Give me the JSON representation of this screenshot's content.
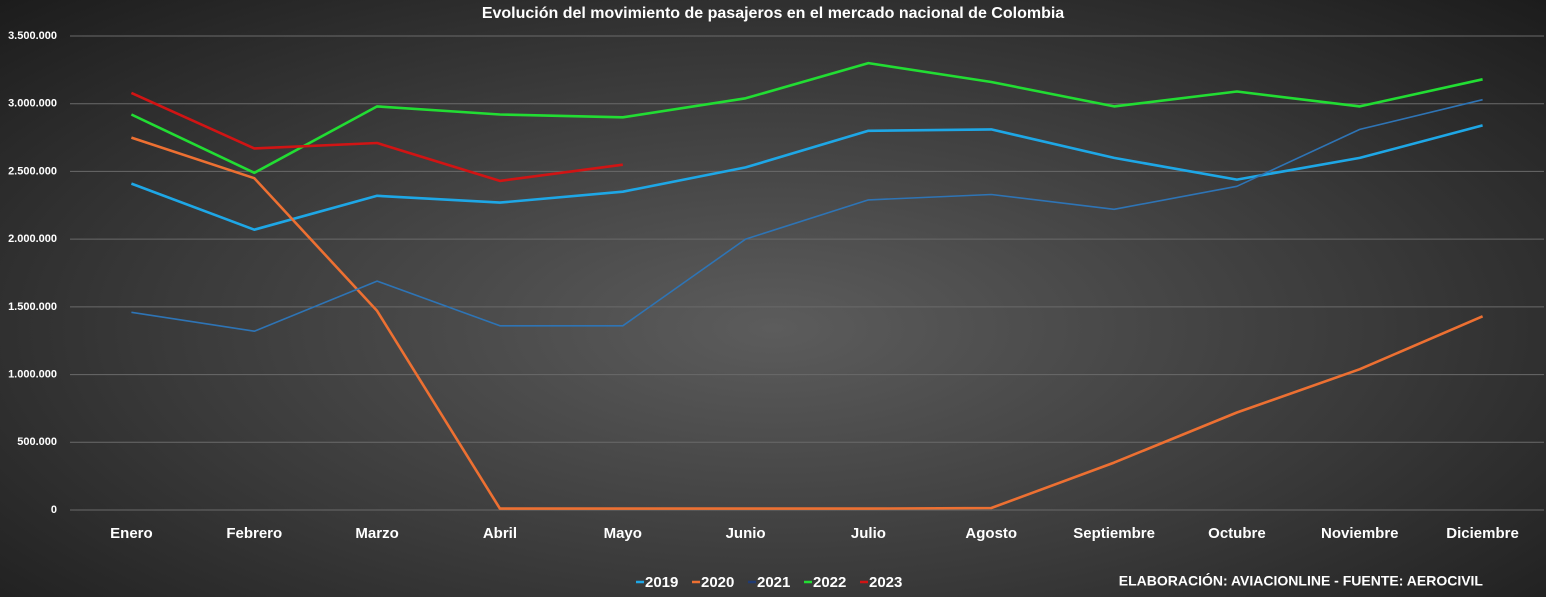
{
  "chart_data": {
    "type": "line",
    "title": "Evolución del movimiento de pasajeros en el mercado nacional de Colombia",
    "source": "ELABORACIÓN: AVIACIONLINE  - FUENTE: AEROCIVIL",
    "categories": [
      "Enero",
      "Febrero",
      "Marzo",
      "Abril",
      "Mayo",
      "Junio",
      "Julio",
      "Agosto",
      "Septiembre",
      "Octubre",
      "Noviembre",
      "Diciembre"
    ],
    "series": [
      {
        "name": "2019",
        "color": "#1ea7e6",
        "values": [
          2410000,
          2070000,
          2320000,
          2270000,
          2350000,
          2530000,
          2800000,
          2810000,
          2600000,
          2440000,
          2600000,
          2840000
        ]
      },
      {
        "name": "2020",
        "color": "#ed7032",
        "values": [
          2750000,
          2450000,
          1470000,
          10000,
          10000,
          10000,
          10000,
          15000,
          350000,
          720000,
          1040000,
          1430000
        ]
      },
      {
        "name": "2021",
        "color": "#2e74b5",
        "legend_color": "#1f3a73",
        "values": [
          1460000,
          1320000,
          1690000,
          1360000,
          1360000,
          2000000,
          2290000,
          2330000,
          2220000,
          2390000,
          2810000,
          3030000
        ]
      },
      {
        "name": "2022",
        "color": "#22dd33",
        "values": [
          2920000,
          2490000,
          2980000,
          2920000,
          2900000,
          3040000,
          3300000,
          3160000,
          2980000,
          3090000,
          2980000,
          3180000
        ]
      },
      {
        "name": "2023",
        "color": "#d11414",
        "values": [
          3080000,
          2670000,
          2710000,
          2430000,
          2550000,
          null,
          null,
          null,
          null,
          null,
          null,
          null
        ]
      }
    ],
    "ylim": [
      0,
      3500000
    ],
    "yticks": [
      0,
      {
        "value": 500000,
        "label": "500.000"
      },
      {
        "value": 1000000,
        "label": "1.000.000"
      },
      {
        "value": 1500000,
        "label": "1.500.000"
      },
      {
        "value": 2000000,
        "label": "2.000.000"
      },
      {
        "value": 2500000,
        "label": "2.500.000"
      },
      {
        "value": 3000000,
        "label": "3.000.000"
      },
      {
        "value": 3500000,
        "label": "3.500.000"
      }
    ],
    "grid": true,
    "legend": "bottom"
  }
}
